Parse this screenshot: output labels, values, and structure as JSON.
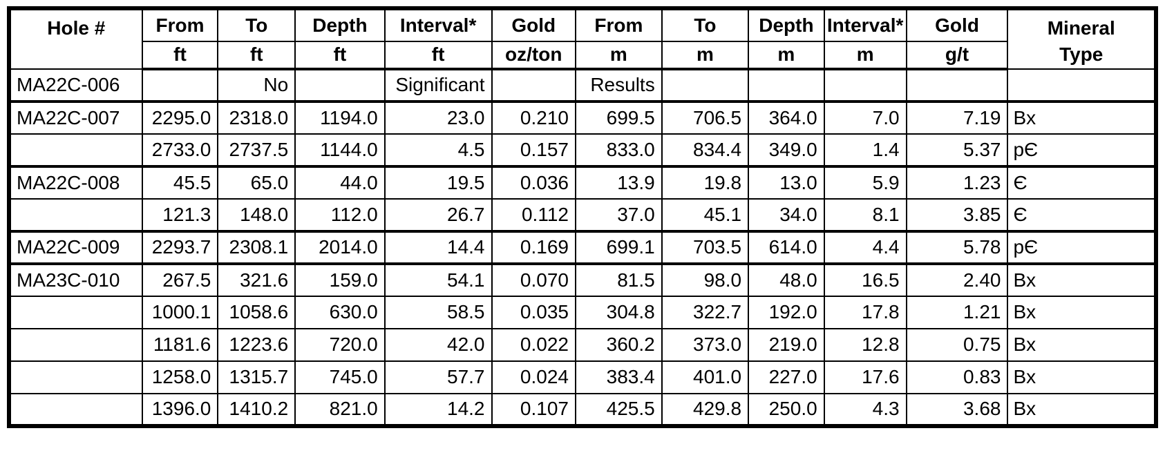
{
  "chart_data": {
    "type": "table",
    "title": "Drill hole assay results table",
    "header": {
      "hole": "Hole #",
      "cols": [
        {
          "label": "From",
          "unit": "ft"
        },
        {
          "label": "To",
          "unit": "ft"
        },
        {
          "label": "Depth",
          "unit": "ft"
        },
        {
          "label": "Interval*",
          "unit": "ft"
        },
        {
          "label": "Gold",
          "unit": "oz/ton"
        },
        {
          "label": "From",
          "unit": "m"
        },
        {
          "label": "To",
          "unit": "m"
        },
        {
          "label": "Depth",
          "unit": "m"
        },
        {
          "label": "Interval*",
          "unit": "m"
        },
        {
          "label": "Gold",
          "unit": "g/t"
        }
      ],
      "mineral_line1": "Mineral",
      "mineral_line2": "Type"
    },
    "rows": [
      {
        "hole": "MA22C-006",
        "values": [
          "",
          "No",
          "",
          "Significant",
          "",
          "Results",
          "",
          "",
          "",
          ""
        ],
        "mineral": "",
        "thick_bottom": true
      },
      {
        "hole": "MA22C-007",
        "values": [
          "2295.0",
          "2318.0",
          "1194.0",
          "23.0",
          "0.210",
          "699.5",
          "706.5",
          "364.0",
          "7.0",
          "7.19"
        ],
        "mineral": "Bx",
        "thick_bottom": false
      },
      {
        "hole": "",
        "values": [
          "2733.0",
          "2737.5",
          "1144.0",
          "4.5",
          "0.157",
          "833.0",
          "834.4",
          "349.0",
          "1.4",
          "5.37"
        ],
        "mineral": "pЄ",
        "thick_bottom": true
      },
      {
        "hole": "MA22C-008",
        "values": [
          "45.5",
          "65.0",
          "44.0",
          "19.5",
          "0.036",
          "13.9",
          "19.8",
          "13.0",
          "5.9",
          "1.23"
        ],
        "mineral": "Є",
        "thick_bottom": false
      },
      {
        "hole": "",
        "values": [
          "121.3",
          "148.0",
          "112.0",
          "26.7",
          "0.112",
          "37.0",
          "45.1",
          "34.0",
          "8.1",
          "3.85"
        ],
        "mineral": "Є",
        "thick_bottom": true
      },
      {
        "hole": "MA22C-009",
        "values": [
          "2293.7",
          "2308.1",
          "2014.0",
          "14.4",
          "0.169",
          "699.1",
          "703.5",
          "614.0",
          "4.4",
          "5.78"
        ],
        "mineral": "pЄ",
        "thick_bottom": true
      },
      {
        "hole": "MA23C-010",
        "values": [
          "267.5",
          "321.6",
          "159.0",
          "54.1",
          "0.070",
          "81.5",
          "98.0",
          "48.0",
          "16.5",
          "2.40"
        ],
        "mineral": "Bx",
        "thick_bottom": false
      },
      {
        "hole": "",
        "values": [
          "1000.1",
          "1058.6",
          "630.0",
          "58.5",
          "0.035",
          "304.8",
          "322.7",
          "192.0",
          "17.8",
          "1.21"
        ],
        "mineral": "Bx",
        "thick_bottom": false
      },
      {
        "hole": "",
        "values": [
          "1181.6",
          "1223.6",
          "720.0",
          "42.0",
          "0.022",
          "360.2",
          "373.0",
          "219.0",
          "12.8",
          "0.75"
        ],
        "mineral": "Bx",
        "thick_bottom": false
      },
      {
        "hole": "",
        "values": [
          "1258.0",
          "1315.7",
          "745.0",
          "57.7",
          "0.024",
          "383.4",
          "401.0",
          "227.0",
          "17.6",
          "0.83"
        ],
        "mineral": "Bx",
        "thick_bottom": false
      },
      {
        "hole": "",
        "values": [
          "1396.0",
          "1410.2",
          "821.0",
          "14.2",
          "0.107",
          "425.5",
          "429.8",
          "250.0",
          "4.3",
          "3.68"
        ],
        "mineral": "Bx",
        "thick_bottom": false
      }
    ]
  }
}
